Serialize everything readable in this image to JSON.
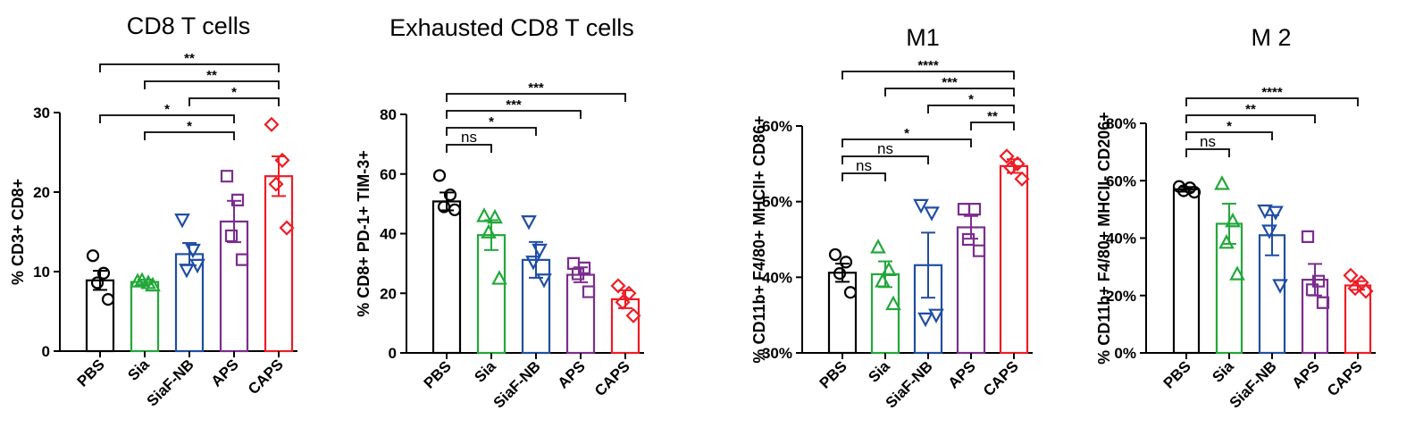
{
  "colors": {
    "PBS": "#000000",
    "Sia": "#22a83a",
    "SiaF-NB": "#1f4ea3",
    "APS": "#7b2d8e",
    "CAPS": "#ee1c25"
  },
  "chart_data": [
    {
      "type": "bar",
      "title": "CD8 T cells",
      "ylabel": "% CD3+ CD8+",
      "categories": [
        "PBS",
        "Sia",
        "SiaF-NB",
        "APS",
        "CAPS"
      ],
      "markers": [
        "circle",
        "triangle-up",
        "triangle-down",
        "square",
        "diamond"
      ],
      "ylim": [
        0,
        30
      ],
      "yticks": [
        0,
        10,
        20,
        30
      ],
      "ytick_labels": [
        "0",
        "10",
        "20",
        "30"
      ],
      "means": [
        8.9,
        8.7,
        12.2,
        16.3,
        22.0
      ],
      "sem": [
        1.2,
        0.3,
        1.4,
        2.6,
        2.5
      ],
      "points": [
        [
          12.0,
          9.8,
          8.6,
          6.5
        ],
        [
          8.8,
          8.6,
          8.9,
          8.3
        ],
        [
          16.5,
          12.7,
          10.2,
          10.8
        ],
        [
          22.0,
          19.0,
          14.5,
          11.5
        ],
        [
          28.5,
          24.0,
          21.0,
          15.5
        ]
      ],
      "significance": [
        {
          "from": 0,
          "to": 4,
          "label": "**"
        },
        {
          "from": 1,
          "to": 4,
          "label": "**"
        },
        {
          "from": 2,
          "to": 4,
          "label": "*"
        },
        {
          "from": 0,
          "to": 3,
          "label": "*"
        },
        {
          "from": 1,
          "to": 3,
          "label": "*"
        }
      ]
    },
    {
      "type": "bar",
      "title": "Exhausted CD8 T cells",
      "ylabel": "% CD8+ PD-1+ TIM-3+",
      "categories": [
        "PBS",
        "Sia",
        "SiaF-NB",
        "APS",
        "CAPS"
      ],
      "markers": [
        "circle",
        "triangle-up",
        "triangle-down",
        "square",
        "diamond"
      ],
      "ylim": [
        0,
        80
      ],
      "yticks": [
        0,
        20,
        40,
        60,
        80
      ],
      "ytick_labels": [
        "0",
        "20",
        "40",
        "60",
        "80"
      ],
      "means": [
        50.8,
        39.5,
        31.2,
        26.2,
        18.0
      ],
      "sem": [
        3.0,
        5.0,
        6.0,
        2.5,
        3.0
      ],
      "points": [
        [
          59.5,
          53.0,
          49.0,
          48.0
        ],
        [
          46.0,
          45.5,
          40.5,
          25.0
        ],
        [
          44.0,
          34.5,
          30.5,
          24.5
        ],
        [
          30.0,
          28.5,
          26.5,
          20.5
        ],
        [
          22.5,
          20.0,
          17.0,
          12.5
        ]
      ],
      "significance": [
        {
          "from": 0,
          "to": 4,
          "label": "***"
        },
        {
          "from": 0,
          "to": 3,
          "label": "***"
        },
        {
          "from": 0,
          "to": 2,
          "label": "*"
        },
        {
          "from": 0,
          "to": 1,
          "label": "ns"
        }
      ]
    },
    {
      "type": "bar",
      "title": "M1",
      "ylabel": "% CD11b+ F4/80+ MHCII+ CD86+",
      "categories": [
        "PBS",
        "Sia",
        "SiaF-NB",
        "APS",
        "CAPS"
      ],
      "markers": [
        "circle",
        "triangle-up",
        "triangle-down",
        "square",
        "diamond"
      ],
      "ylim": [
        30,
        60
      ],
      "yticks": [
        30,
        40,
        50,
        60
      ],
      "ytick_labels": [
        "30%",
        "40%",
        "50%",
        "60%"
      ],
      "means": [
        40.6,
        40.4,
        41.6,
        46.6,
        54.7
      ],
      "sem": [
        1.2,
        1.7,
        4.3,
        1.5,
        0.9
      ],
      "points": [
        [
          43.0,
          42.0,
          40.5,
          38.0
        ],
        [
          44.0,
          41.0,
          39.5,
          36.5
        ],
        [
          49.5,
          48.5,
          34.5,
          35.0
        ],
        [
          49.0,
          49.0,
          45.0,
          43.5
        ],
        [
          56.0,
          55.0,
          54.5,
          53.0
        ]
      ],
      "significance": [
        {
          "from": 0,
          "to": 4,
          "label": "****"
        },
        {
          "from": 1,
          "to": 4,
          "label": "***"
        },
        {
          "from": 2,
          "to": 4,
          "label": "*"
        },
        {
          "from": 3,
          "to": 4,
          "label": "**"
        },
        {
          "from": 0,
          "to": 3,
          "label": "*"
        },
        {
          "from": 0,
          "to": 2,
          "label": "ns"
        },
        {
          "from": 0,
          "to": 1,
          "label": "ns"
        }
      ]
    },
    {
      "type": "bar",
      "title": "M 2",
      "ylabel": "% CD11b+ F4/80+ MHCII- CD206+",
      "categories": [
        "PBS",
        "Sia",
        "SiaF-NB",
        "APS",
        "CAPS"
      ],
      "markers": [
        "circle",
        "triangle-up",
        "triangle-down",
        "square",
        "diamond"
      ],
      "ylim": [
        0,
        80
      ],
      "yticks": [
        0,
        20,
        40,
        60,
        80
      ],
      "ytick_labels": [
        "0%",
        "20%",
        "40%",
        "60%",
        "80%"
      ],
      "means": [
        57.0,
        45.0,
        41.0,
        25.5,
        23.5
      ],
      "sem": [
        0.8,
        7.0,
        7.0,
        5.5,
        1.5
      ],
      "points": [
        [
          58.0,
          57.5,
          56.5,
          56.0
        ],
        [
          59.0,
          46.0,
          38.5,
          27.5
        ],
        [
          49.5,
          49.0,
          42.5,
          23.5
        ],
        [
          40.5,
          25.0,
          22.0,
          17.5
        ],
        [
          27.0,
          24.5,
          22.5,
          21.5
        ]
      ],
      "significance": [
        {
          "from": 0,
          "to": 4,
          "label": "****"
        },
        {
          "from": 0,
          "to": 3,
          "label": "**"
        },
        {
          "from": 0,
          "to": 2,
          "label": "*"
        },
        {
          "from": 0,
          "to": 1,
          "label": "ns"
        }
      ]
    }
  ]
}
